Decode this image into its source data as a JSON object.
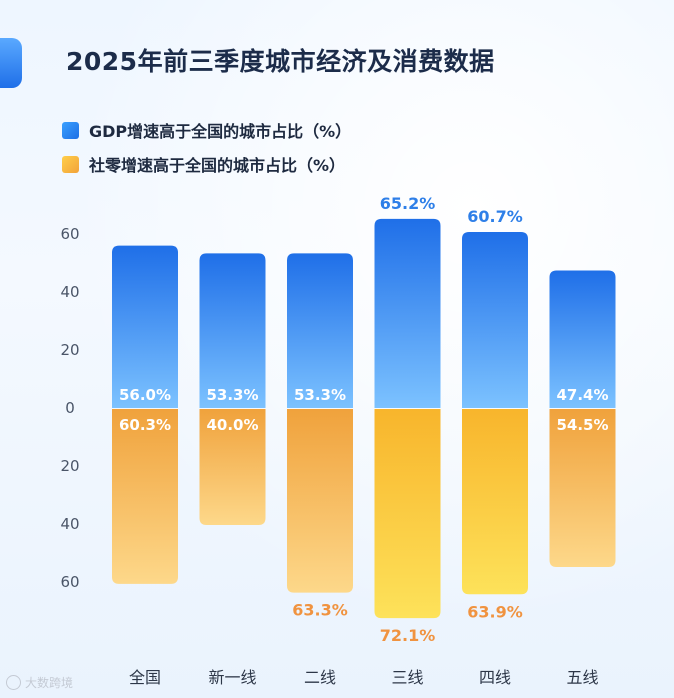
{
  "header": {
    "title": "2025年前三季度城市经济及消费数据"
  },
  "legend": {
    "gdp_label": "GDP增速高于全国的城市占比（%）",
    "retail_label": "社零增速高于全国的城市占比（%）"
  },
  "watermark": {
    "text": "大数跨境"
  },
  "colors": {
    "gdp_top": "#1f6fe8",
    "gdp_bottom": "#7cc2ff",
    "retail_top": "#f0a23c",
    "retail_bottom": "#fdd88a",
    "retail_bright_top": "#f8b52c",
    "retail_bright_bottom": "#fde25a"
  },
  "chart_data": {
    "type": "bar",
    "title": "2025年前三季度城市经济及消费数据",
    "categories": [
      "全国",
      "新一线",
      "二线",
      "三线",
      "四线",
      "五线"
    ],
    "series": [
      {
        "name": "GDP增速高于全国的城市占比（%）",
        "values": [
          56.0,
          53.3,
          53.3,
          65.2,
          60.7,
          47.4
        ],
        "labels": [
          "56.0%",
          "53.3%",
          "53.3%",
          "65.2%",
          "60.7%",
          "47.4%"
        ],
        "direction": "up"
      },
      {
        "name": "社零增速高于全国的城市占比（%）",
        "values": [
          60.3,
          40.0,
          63.3,
          72.1,
          63.9,
          54.5
        ],
        "labels": [
          "60.3%",
          "40.0%",
          "63.3%",
          "72.1%",
          "63.9%",
          "54.5%"
        ],
        "direction": "down"
      }
    ],
    "y_ticks": [
      "60",
      "40",
      "20",
      "0",
      "20",
      "40",
      "60"
    ],
    "y_tick_values": [
      60,
      40,
      20,
      0,
      -20,
      -40,
      -60
    ],
    "ylim": [
      -75,
      70
    ],
    "label_outside": [
      "",
      "",
      "",
      "gdp",
      "gdp",
      ""
    ],
    "label_outside_retail": [
      "",
      "",
      "retail",
      "retail",
      "retail",
      ""
    ],
    "bright_retail": [
      false,
      false,
      false,
      true,
      true,
      false
    ],
    "grid": false
  }
}
